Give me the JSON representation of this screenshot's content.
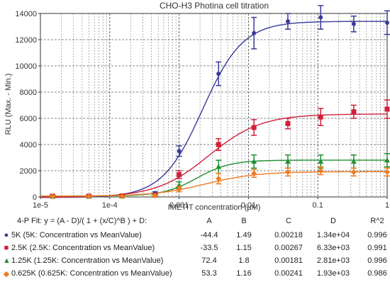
{
  "chart_data": {
    "type": "scatter",
    "title": "CHO-H3 Photina cell titration",
    "xlabel": "IMETIT concentration (µM)",
    "ylabel": "RLU (Max. - Min.)",
    "xscale": "log",
    "xlim": [
      1e-05,
      1
    ],
    "ylim": [
      0,
      14000
    ],
    "x_tick_labels": [
      "1e-5",
      "1e-4",
      "0.001",
      "0.01",
      "0.1",
      "1"
    ],
    "y_ticks": [
      0,
      2000,
      4000,
      6000,
      8000,
      10000,
      12000,
      14000
    ],
    "y_tick_labels": [
      "0",
      "2000",
      "4000",
      "6000",
      "8000",
      "10000",
      "12000",
      "14000"
    ],
    "grid": true,
    "x": [
      1.5e-05,
      5e-05,
      0.00015,
      0.00045,
      0.001,
      0.0037,
      0.012,
      0.037,
      0.11,
      0.33,
      1
    ],
    "series": [
      {
        "name": "5K (5K: Concentration vs MeanValue)",
        "color": "#3a3a9a",
        "marker": "circle",
        "values": [
          80,
          80,
          100,
          300,
          3500,
          9400,
          12500,
          13400,
          13700,
          13200,
          13300
        ],
        "errors": [
          60,
          60,
          60,
          100,
          400,
          900,
          1200,
          600,
          900,
          600,
          900
        ],
        "fit": {
          "A": -44.4,
          "B": 1.49,
          "C": 0.00218,
          "D": 13400
        }
      },
      {
        "name": "2.5K (2.5K: Concentration vs MeanValue)",
        "color": "#d0203a",
        "marker": "square",
        "values": [
          60,
          60,
          80,
          150,
          1700,
          4000,
          5300,
          5600,
          6100,
          6500,
          6700
        ],
        "errors": [
          60,
          60,
          60,
          100,
          300,
          450,
          600,
          400,
          650,
          500,
          700
        ],
        "fit": {
          "A": -33.5,
          "B": 1.15,
          "C": 0.00267,
          "D": 6330
        }
      },
      {
        "name": "1.25K (1.25K: Concentration vs MeanValue)",
        "color": "#1f8f2e",
        "marker": "triangle",
        "values": [
          60,
          60,
          60,
          120,
          900,
          2300,
          2700,
          2700,
          2700,
          2700,
          2800
        ],
        "errors": [
          40,
          40,
          40,
          80,
          250,
          500,
          500,
          500,
          500,
          500,
          500
        ],
        "fit": {
          "A": 72.4,
          "B": 1.8,
          "C": 0.00181,
          "D": 2810
        }
      },
      {
        "name": "0.625K (0.625K: Concentration vs MeanValue)",
        "color": "#f07a1e",
        "marker": "diamond",
        "values": [
          50,
          50,
          50,
          100,
          600,
          1400,
          1800,
          1900,
          2000,
          1900,
          1900
        ],
        "errors": [
          40,
          40,
          40,
          60,
          200,
          400,
          300,
          300,
          300,
          300,
          300
        ],
        "fit": {
          "A": 53.3,
          "B": 1.16,
          "C": 0.00241,
          "D": 1930
        }
      }
    ]
  },
  "fit_table": {
    "heading": "4-P Fit: y = (A - D)/( 1 + (x/C)^B ) + D:",
    "columns": [
      "A",
      "B",
      "C",
      "D",
      "R^2"
    ],
    "rows": [
      {
        "label": "5K (5K: Concentration vs MeanValue)",
        "A": "-44.4",
        "B": "1.49",
        "C": "0.00218",
        "D": "1.34e+04",
        "R2": "0.996"
      },
      {
        "label": "2.5K (2.5K: Concentration vs MeanValue)",
        "A": "-33.5",
        "B": "1.15",
        "C": "0.00267",
        "D": "6.33e+03",
        "R2": "0.991"
      },
      {
        "label": "1.25K (1.25K: Concentration vs MeanValue)",
        "A": "72.4",
        "B": "1.8",
        "C": "0.00181",
        "D": "2.81e+03",
        "R2": "0.996"
      },
      {
        "label": "0.625K (0.625K: Concentration vs MeanValue)",
        "A": "53.3",
        "B": "1.16",
        "C": "0.00241",
        "D": "1.93e+03",
        "R2": "0.986"
      }
    ]
  }
}
